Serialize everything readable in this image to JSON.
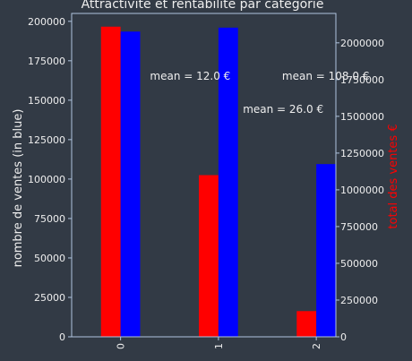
{
  "chart_data": {
    "type": "bar",
    "title": "Attractivité et rentabilité par catégorie",
    "categories": [
      "0",
      "1",
      "2"
    ],
    "left_axis": {
      "label": "nombre de ventes (in blue)",
      "ylim": [
        0,
        205000
      ],
      "ticks": [
        0,
        25000,
        50000,
        75000,
        100000,
        125000,
        150000,
        175000,
        200000
      ],
      "tick_labels": [
        "0",
        "25000",
        "50000",
        "75000",
        "100000",
        "125000",
        "150000",
        "175000",
        "200000"
      ]
    },
    "right_axis": {
      "label": "total des ventes €",
      "label_color": "#ff0000",
      "ylim": [
        0,
        2200000
      ],
      "ticks": [
        0,
        250000,
        500000,
        750000,
        1000000,
        1250000,
        1500000,
        1750000,
        2000000
      ],
      "tick_labels": [
        "0",
        "250000",
        "500000",
        "750000",
        "1000000",
        "1250000",
        "1500000",
        "1750000",
        "2000000"
      ]
    },
    "series": [
      {
        "color": "#ff0000",
        "axis": "right",
        "values": [
          2110000,
          1100000,
          175000
        ]
      },
      {
        "color": "#0000ff",
        "axis": "left",
        "values": [
          193500,
          196000,
          109500
        ]
      }
    ],
    "annotations": [
      {
        "text": "mean = 12.0 €",
        "x": 0.3,
        "y_left": 163000
      },
      {
        "text": "mean = 26.0 €",
        "x": 1.25,
        "y_left": 142000
      },
      {
        "text": "mean = 108.0 €",
        "x": 1.65,
        "y_left": 163000
      }
    ],
    "grid": false,
    "legend": "none"
  }
}
